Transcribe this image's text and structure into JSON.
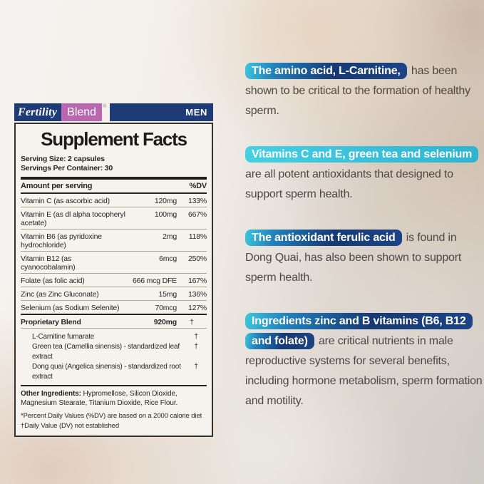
{
  "label": {
    "brand": {
      "fertility": "Fertility",
      "blend": "Blend",
      "reg_mark": "®",
      "men": "MEN"
    },
    "title": "Supplement Facts",
    "serving_size": "Serving Size: 2 capsules",
    "servings_per_container": "Servings Per Container: 30",
    "columns": {
      "amount": "Amount per serving",
      "dv": "%DV"
    },
    "rows": [
      {
        "name": "Vitamin C (as ascorbic acid)",
        "amount": "120mg",
        "dv": "133%"
      },
      {
        "name": "Vitamin E (as dl alpha tocopheryl acetate)",
        "amount": "100mg",
        "dv": "667%"
      },
      {
        "name": "Vitamin B6 (as pyridoxine hydrochloride)",
        "amount": "2mg",
        "dv": "118%"
      },
      {
        "name": "Vitamin B12 (as cyanocobalamin)",
        "amount": "6mcg",
        "dv": "250%"
      },
      {
        "name": "Folate (as folic acid)",
        "amount": "666 mcg DFE",
        "dv": "167%"
      },
      {
        "name": "Zinc (as Zinc Gluconate)",
        "amount": "15mg",
        "dv": "136%"
      },
      {
        "name": "Selenium (as Sodium Selenite)",
        "amount": "70mcg",
        "dv": "127%"
      }
    ],
    "blend_row": {
      "name": "Proprietary Blend",
      "amount": "920mg",
      "dv": "†"
    },
    "blend_items": [
      {
        "name": "L-Carnitine fumarate",
        "dv": "†"
      },
      {
        "name": "Green tea (Camellia sinensis) - standardized leaf extract",
        "dv": "†"
      },
      {
        "name": "Dong quai (Angelica sinensis) - standardized root extract",
        "dv": "†"
      }
    ],
    "other_ingredients_label": "Other Ingredients:",
    "other_ingredients_text": " Hypromellose, Silicon Dioxide,  Magnesium Stearate, Titanium Dioxide, Rice Flour.",
    "footnote_dv": "*Percent Daily Values (%DV) are based on a 2000 calorie diet",
    "footnote_dagger": "†Daily Value (DV) not established"
  },
  "callouts": [
    {
      "highlight": "The amino acid, L-Carnitine,",
      "rest": " has been shown to be critical to the formation of healthy sperm.",
      "style": "blue"
    },
    {
      "highlight": "Vitamins C and E, green tea and selenium",
      "rest": " are all potent antioxidants that designed to support sperm health.",
      "style": "cyan"
    },
    {
      "highlight": "The antioxidant ferulic acid",
      "rest": " is found in Dong Quai, has also been shown to support sperm health.",
      "style": "blue"
    },
    {
      "highlight": "Ingredients zinc and B vitamins (B6, B12 and folate)",
      "rest": " are critical nutrients in male reproductive systems for several benefits, including hormone metabolism, sperm formation and motility.",
      "style": "blue"
    }
  ],
  "colors": {
    "brand_navy": "#1e3b76",
    "brand_pink": "#b868b0",
    "highlight_cyan": "#2eb4cf",
    "highlight_navy": "#173a74",
    "body_text": "#4d4845"
  }
}
